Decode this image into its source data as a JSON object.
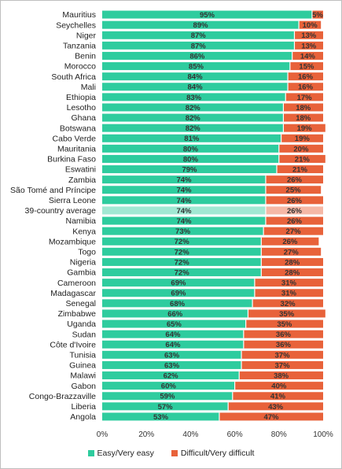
{
  "chart_data": {
    "type": "bar",
    "orientation": "horizontal",
    "stacked": true,
    "title": "",
    "xlabel": "",
    "ylabel": "",
    "xlim": [
      0,
      100
    ],
    "x_ticks": [
      "0%",
      "20%",
      "40%",
      "60%",
      "80%",
      "100%"
    ],
    "grid": false,
    "legend_position": "bottom",
    "highlight_category": "39-country average",
    "categories": [
      "Mauritius",
      "Seychelles",
      "Niger",
      "Tanzania",
      "Benin",
      "Morocco",
      "South Africa",
      "Mali",
      "Ethiopia",
      "Lesotho",
      "Ghana",
      "Botswana",
      "Cabo Verde",
      "Mauritania",
      "Burkina Faso",
      "Eswatini",
      "Zambia",
      "São Tomé and Príncipe",
      "Sierra Leone",
      "39-country average",
      "Namibia",
      "Kenya",
      "Mozambique",
      "Togo",
      "Nigeria",
      "Gambia",
      "Cameroon",
      "Madagascar",
      "Senegal",
      "Zimbabwe",
      "Uganda",
      "Sudan",
      "Côte d'Ivoire",
      "Tunisia",
      "Guinea",
      "Malawi",
      "Gabon",
      "Congo-Brazzaville",
      "Liberia",
      "Angola"
    ],
    "series": [
      {
        "name": "Easy/Very easy",
        "color": "#2ecc9e",
        "values": [
          95,
          89,
          87,
          87,
          86,
          85,
          84,
          84,
          83,
          82,
          82,
          82,
          81,
          80,
          80,
          79,
          74,
          74,
          74,
          74,
          74,
          73,
          72,
          72,
          72,
          72,
          69,
          69,
          68,
          66,
          65,
          64,
          64,
          63,
          63,
          62,
          60,
          59,
          57,
          53
        ]
      },
      {
        "name": "Difficult/Very difficult",
        "color": "#e8623a",
        "values": [
          5,
          10,
          13,
          13,
          14,
          15,
          16,
          16,
          17,
          18,
          18,
          19,
          19,
          20,
          21,
          21,
          26,
          25,
          26,
          26,
          26,
          27,
          26,
          27,
          28,
          28,
          31,
          31,
          32,
          35,
          35,
          36,
          36,
          37,
          37,
          38,
          40,
          41,
          43,
          47
        ]
      }
    ]
  }
}
